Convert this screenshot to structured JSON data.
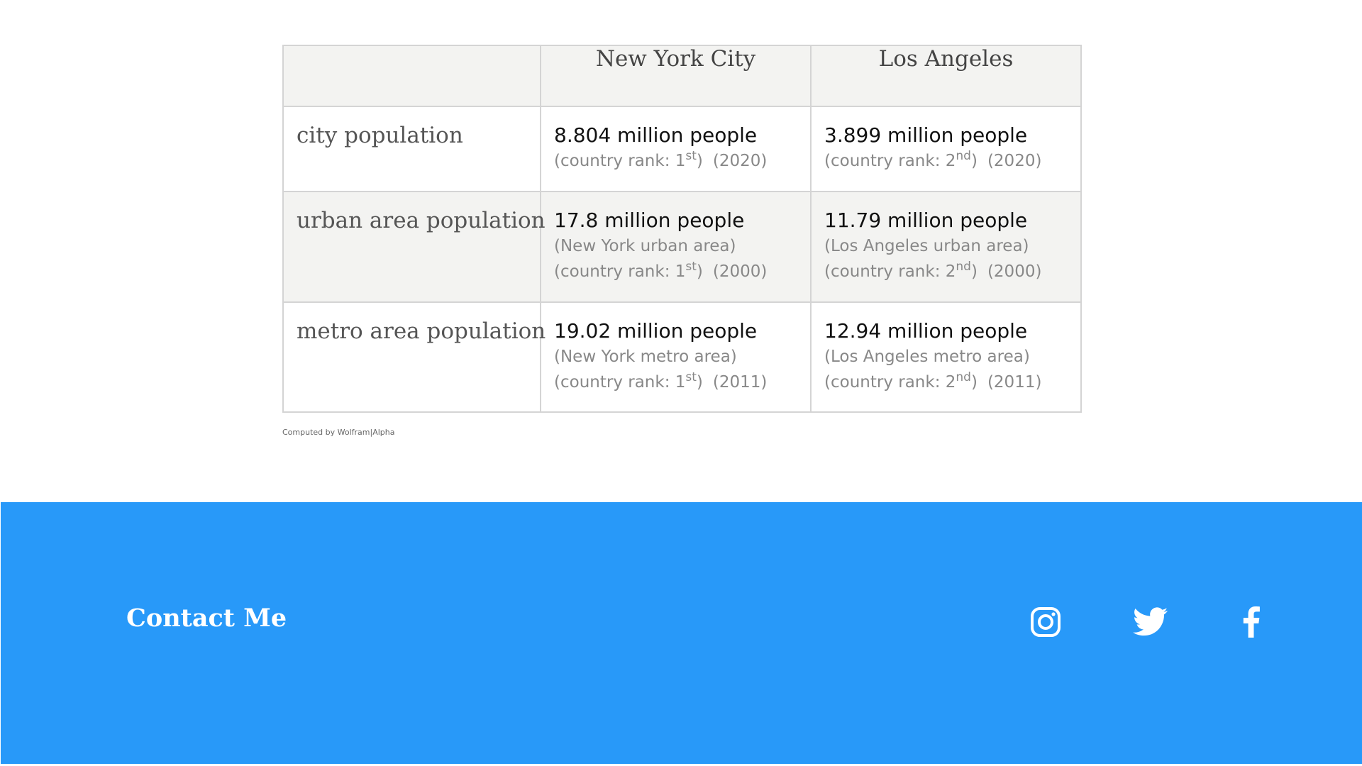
{
  "table": {
    "headers": [
      "",
      "New York City",
      "Los Angeles"
    ],
    "rows": [
      {
        "label": "city population",
        "cells": [
          {
            "main": "8.804 million people",
            "lines": [],
            "rank_prefix": "(country rank: 1",
            "rank_suffix": "st",
            "rank_close": ")",
            "year": "(2020)"
          },
          {
            "main": "3.899 million people",
            "lines": [],
            "rank_prefix": "(country rank: 2",
            "rank_suffix": "nd",
            "rank_close": ")",
            "year": "(2020)"
          }
        ]
      },
      {
        "label": "urban area population",
        "cells": [
          {
            "main": "17.8 million people",
            "lines": [
              "(New York urban area)"
            ],
            "rank_prefix": "(country rank: 1",
            "rank_suffix": "st",
            "rank_close": ")",
            "year": "(2000)"
          },
          {
            "main": "11.79 million people",
            "lines": [
              "(Los Angeles urban area)"
            ],
            "rank_prefix": "(country rank: 2",
            "rank_suffix": "nd",
            "rank_close": ")",
            "year": "(2000)"
          }
        ]
      },
      {
        "label": "metro area population",
        "cells": [
          {
            "main": "19.02 million people",
            "lines": [
              "(New York metro area)"
            ],
            "rank_prefix": "(country rank: 1",
            "rank_suffix": "st",
            "rank_close": ")",
            "year": "(2011)"
          },
          {
            "main": "12.94 million people",
            "lines": [
              "(Los Angeles metro area)"
            ],
            "rank_prefix": "(country rank: 2",
            "rank_suffix": "nd",
            "rank_close": ")",
            "year": "(2011)"
          }
        ]
      }
    ]
  },
  "attribution": "Computed by Wolfram|Alpha",
  "footer": {
    "title": "Contact Me",
    "background": "#2899f9",
    "social": [
      "instagram-icon",
      "twitter-icon",
      "facebook-icon"
    ]
  }
}
